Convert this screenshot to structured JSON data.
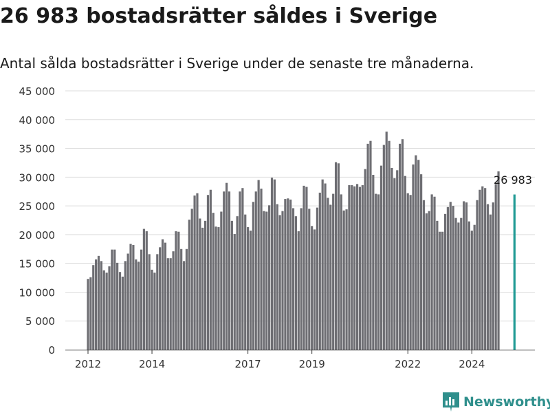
{
  "title": "26 983 bostadsrätter såldes i Sverige",
  "subtitle": "Antal sålda bostadsrätter i Sverige under de senaste tre månaderna.",
  "brand": {
    "name": "Newsworthy",
    "color": "#2f8f8c",
    "icon": "bar-chart-icon"
  },
  "colors": {
    "bar": "#6e6e73",
    "highlight": "#1f9a94",
    "grid": "#dddddd",
    "axis": "#333333"
  },
  "chart_data": {
    "type": "bar",
    "title": "",
    "xlabel": "",
    "ylabel": "",
    "ylim": [
      0,
      45000
    ],
    "yticks": [
      0,
      5000,
      10000,
      15000,
      20000,
      25000,
      30000,
      35000,
      40000,
      45000
    ],
    "ytick_labels": [
      "0",
      "5 000",
      "10 000",
      "15 000",
      "20 000",
      "25 000",
      "30 000",
      "35 000",
      "40 000",
      "45 000"
    ],
    "x_start": "2012-01",
    "xticks": [
      {
        "date": "2012-01",
        "label": "2012"
      },
      {
        "date": "2014-01",
        "label": "2014"
      },
      {
        "date": "2017-01",
        "label": "2017"
      },
      {
        "date": "2019-01",
        "label": "2019"
      },
      {
        "date": "2022-01",
        "label": "2022"
      },
      {
        "date": "2024-01",
        "label": "2024"
      }
    ],
    "grid": true,
    "values": [
      12300,
      12600,
      14700,
      15700,
      16300,
      15400,
      13800,
      13400,
      14500,
      17400,
      17400,
      15100,
      13500,
      12700,
      15400,
      16700,
      18400,
      18200,
      15700,
      15300,
      17400,
      21000,
      20600,
      16600,
      13900,
      13400,
      16600,
      17800,
      19200,
      18600,
      15900,
      15900,
      17100,
      20600,
      20500,
      17500,
      15400,
      17500,
      22600,
      24500,
      26800,
      27200,
      22800,
      21200,
      22400,
      26900,
      27800,
      23800,
      21400,
      21300,
      24000,
      27500,
      29000,
      27500,
      22400,
      20100,
      23200,
      27500,
      28100,
      23500,
      21300,
      20700,
      25700,
      27500,
      29500,
      28000,
      24100,
      24000,
      25100,
      29900,
      29600,
      25300,
      23400,
      24100,
      26200,
      26300,
      26100,
      24600,
      23200,
      20600,
      24600,
      28500,
      28300,
      24500,
      21500,
      20900,
      24700,
      27300,
      29600,
      28900,
      26400,
      25200,
      27100,
      32600,
      32400,
      27000,
      24200,
      24400,
      28600,
      28600,
      28400,
      28800,
      28300,
      28600,
      31400,
      35800,
      36300,
      30400,
      27100,
      27000,
      32000,
      35600,
      37900,
      36300,
      31600,
      29800,
      31200,
      35800,
      36600,
      30200,
      27200,
      26900,
      32200,
      33800,
      33000,
      30500,
      26000,
      23700,
      24100,
      27000,
      26600,
      22400,
      20500,
      20500,
      23600,
      24800,
      25700,
      25000,
      22900,
      22100,
      22900,
      25800,
      25600,
      22300,
      20700,
      21700,
      26000,
      27800,
      28400,
      28100,
      25300,
      23500,
      25600,
      28800,
      31000
    ],
    "highlight": {
      "date": "2025-05",
      "value": 26983,
      "label": "26 983"
    }
  }
}
